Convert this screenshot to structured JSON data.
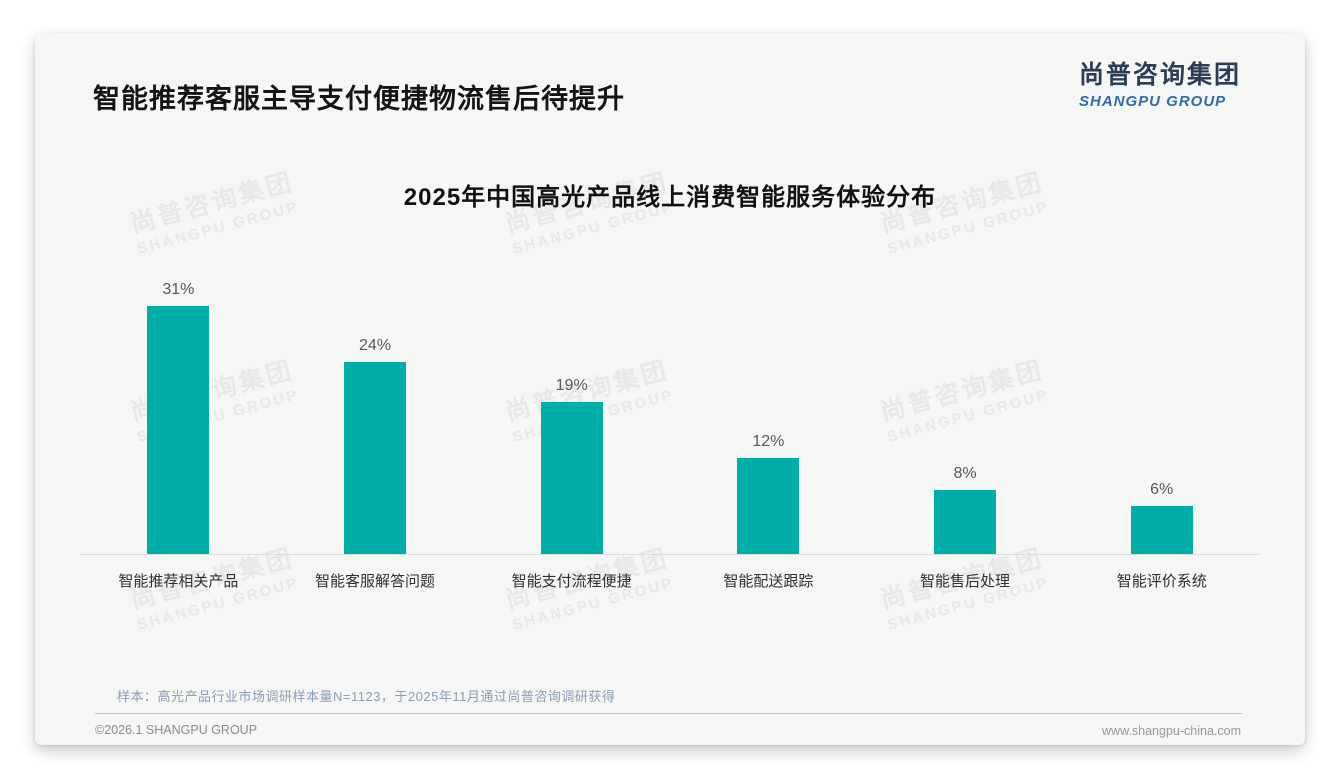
{
  "page": {
    "title": "智能推荐客服主导支付便捷物流售后待提升",
    "logo": {
      "cn": "尚普咨询集团",
      "en": "SHANGPU GROUP"
    },
    "watermark": {
      "cn": "尚普咨询集团",
      "en": "SHANGPU GROUP"
    },
    "footnote": "样本：高光产品行业市场调研样本量N=1123，于2025年11月通过尚普咨询调研获得",
    "footer": {
      "left": "©2026.1 SHANGPU GROUP",
      "right": "www.shangpu-china.com"
    }
  },
  "colors": {
    "bar": "#00ada8",
    "logo_cn": "#2b3e55",
    "logo_en": "#2e6cb0",
    "axis_line": "#dcdcdc",
    "footnote_text": "#8b9db5"
  },
  "chart_data": {
    "type": "bar",
    "title": "2025年中国高光产品线上消费智能服务体验分布",
    "categories": [
      "智能推荐相关产品",
      "智能客服解答问题",
      "智能支付流程便捷",
      "智能配送跟踪",
      "智能售后处理",
      "智能评价系统"
    ],
    "values": [
      31,
      24,
      19,
      12,
      8,
      6
    ],
    "unit": "%",
    "value_labels": [
      "31%",
      "24%",
      "19%",
      "12%",
      "8%",
      "6%"
    ],
    "xlabel": "",
    "ylabel": "",
    "ylim": [
      0,
      35
    ],
    "grid": false,
    "legend": false,
    "bar_color": "#00ada8"
  }
}
